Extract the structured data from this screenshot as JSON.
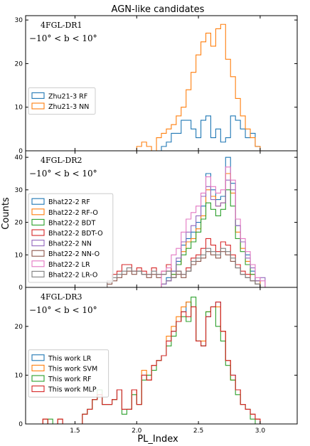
{
  "chart_data": {
    "type": "histogram",
    "title": "AGN-like candidates",
    "xlabel": "PL_Index",
    "ylabel": "Counts",
    "xlim": [
      1.1,
      3.3
    ],
    "x_ticks": [
      "1.5",
      "2.0",
      "2.5",
      "3.0"
    ],
    "x_tick_values": [
      1.5,
      2.0,
      2.5,
      3.0
    ],
    "grid": false,
    "bins": {
      "start": 1.2,
      "width": 0.04,
      "count": 50
    },
    "panels": [
      {
        "catalog": "4FGL-DR1",
        "region": "−10° < b < 10°",
        "ylim": [
          0,
          31
        ],
        "y_ticks": [
          "0",
          "10",
          "20",
          "30"
        ],
        "y_tick_values": [
          0,
          10,
          20,
          30
        ],
        "legend_placement": "center-left",
        "series": [
          {
            "name": "Zhu21-3 RF",
            "color": "#1f77b4",
            "counts": [
              0,
              0,
              0,
              0,
              0,
              0,
              0,
              0,
              0,
              0,
              0,
              0,
              0,
              0,
              0,
              0,
              0,
              0,
              0,
              0,
              0,
              0,
              0,
              0,
              0,
              1,
              2,
              4,
              4,
              7,
              7,
              5,
              3,
              7,
              8,
              3,
              5,
              2,
              3,
              8,
              7,
              5,
              3,
              4,
              1,
              0,
              0,
              0,
              0,
              0
            ]
          },
          {
            "name": "Zhu21-3 NN",
            "color": "#ff7f0e",
            "counts": [
              0,
              0,
              0,
              0,
              0,
              0,
              0,
              0,
              0,
              0,
              0,
              0,
              0,
              0,
              0,
              0,
              0,
              0,
              0,
              0,
              1,
              2,
              1,
              0,
              3,
              4,
              5,
              6,
              8,
              10,
              14,
              18,
              22,
              25,
              27,
              24,
              28,
              29,
              21,
              17,
              12,
              8,
              5,
              3,
              1,
              0,
              0,
              0,
              0,
              0
            ]
          }
        ]
      },
      {
        "catalog": "4FGL-DR2",
        "region": "−10° < b < 10°",
        "ylim": [
          0,
          42
        ],
        "y_ticks": [
          "0",
          "10",
          "20",
          "30",
          "40"
        ],
        "y_tick_values": [
          0,
          10,
          20,
          30,
          40
        ],
        "legend_placement": "lower-left",
        "series": [
          {
            "name": "Bhat22-2 RF",
            "color": "#1f77b4",
            "counts": [
              0,
              0,
              0,
              0,
              0,
              0,
              0,
              0,
              0,
              0,
              0,
              0,
              0,
              0,
              0,
              0,
              0,
              0,
              0,
              0,
              0,
              0,
              0,
              0,
              0,
              1,
              3,
              5,
              8,
              13,
              15,
              17,
              20,
              25,
              35,
              30,
              27,
              28,
              40,
              32,
              19,
              14,
              10,
              5,
              2,
              0,
              0,
              0,
              0,
              0
            ]
          },
          {
            "name": "Bhat22-2 RF-O",
            "color": "#ff7f0e",
            "counts": [
              0,
              0,
              0,
              0,
              0,
              0,
              0,
              0,
              0,
              0,
              0,
              0,
              0,
              0,
              0,
              0,
              0,
              0,
              0,
              0,
              0,
              0,
              0,
              0,
              0,
              1,
              2,
              4,
              7,
              11,
              14,
              15,
              18,
              22,
              30,
              28,
              25,
              26,
              35,
              29,
              17,
              12,
              8,
              4,
              2,
              0,
              0,
              0,
              0,
              0
            ]
          },
          {
            "name": "Bhat22-2 BDT",
            "color": "#2ca02c",
            "counts": [
              0,
              0,
              0,
              0,
              0,
              0,
              0,
              0,
              0,
              0,
              0,
              0,
              0,
              0,
              0,
              0,
              0,
              0,
              0,
              0,
              0,
              0,
              0,
              0,
              0,
              1,
              2,
              4,
              7,
              10,
              12,
              14,
              17,
              21,
              26,
              24,
              22,
              24,
              30,
              25,
              15,
              11,
              7,
              4,
              1,
              0,
              0,
              0,
              0,
              0
            ]
          },
          {
            "name": "Bhat22-2 BDT-O",
            "color": "#d62728",
            "counts": [
              0,
              0,
              0,
              0,
              0,
              0,
              0,
              0,
              0,
              0,
              0,
              0,
              0,
              0,
              2,
              4,
              5,
              7,
              7,
              5,
              6,
              5,
              4,
              6,
              4,
              5,
              7,
              3,
              5,
              4,
              6,
              9,
              10,
              12,
              15,
              13,
              11,
              14,
              13,
              10,
              7,
              5,
              4,
              2,
              1,
              0,
              0,
              0,
              0,
              0
            ]
          },
          {
            "name": "Bhat22-2 NN",
            "color": "#9467bd",
            "counts": [
              0,
              0,
              0,
              0,
              0,
              0,
              0,
              0,
              0,
              0,
              0,
              0,
              0,
              0,
              0,
              0,
              0,
              0,
              0,
              0,
              0,
              0,
              0,
              0,
              0,
              1,
              2,
              5,
              9,
              14,
              17,
              19,
              22,
              28,
              31,
              27,
              25,
              26,
              33,
              30,
              19,
              14,
              9,
              6,
              2,
              3,
              0,
              0,
              0,
              0
            ]
          },
          {
            "name": "Bhat22-2 NN-O",
            "color": "#8c564b",
            "counts": [
              0,
              0,
              0,
              0,
              0,
              0,
              0,
              0,
              0,
              0,
              0,
              0,
              0,
              0,
              1,
              2,
              3,
              4,
              5,
              4,
              5,
              4,
              3,
              4,
              3,
              4,
              5,
              3,
              4,
              3,
              5,
              7,
              8,
              9,
              11,
              10,
              9,
              11,
              10,
              8,
              6,
              4,
              3,
              2,
              1,
              0,
              0,
              0,
              0,
              0
            ]
          },
          {
            "name": "Bhat22-2 LR",
            "color": "#e377c2",
            "counts": [
              0,
              0,
              0,
              0,
              0,
              0,
              0,
              0,
              0,
              0,
              0,
              0,
              0,
              0,
              0,
              0,
              0,
              0,
              0,
              0,
              0,
              0,
              0,
              0,
              0,
              5,
              6,
              10,
              12,
              17,
              21,
              23,
              25,
              29,
              34,
              31,
              29,
              30,
              37,
              33,
              21,
              15,
              11,
              7,
              3,
              2,
              0,
              0,
              0,
              0
            ]
          },
          {
            "name": "Bhat22-2 LR-O",
            "color": "#7f7f7f",
            "counts": [
              0,
              0,
              0,
              0,
              0,
              0,
              0,
              0,
              0,
              0,
              0,
              0,
              0,
              0,
              2,
              3,
              4,
              5,
              6,
              5,
              5,
              4,
              4,
              5,
              4,
              4,
              5,
              3,
              5,
              4,
              5,
              8,
              9,
              10,
              12,
              11,
              10,
              12,
              11,
              9,
              6,
              4,
              3,
              2,
              1,
              0,
              0,
              0,
              0,
              0
            ]
          }
        ]
      },
      {
        "catalog": "4FGL-DR3",
        "region": "−10° < b < 10°",
        "ylim": [
          0,
          28
        ],
        "y_ticks": [
          "0",
          "10",
          "20"
        ],
        "y_tick_values": [
          0,
          10,
          20
        ],
        "legend_placement": "center-left",
        "series": [
          {
            "name": "This work LR",
            "color": "#1f77b4",
            "counts": [
              0,
              1,
              0,
              0,
              1,
              0,
              0,
              0,
              0,
              2,
              3,
              5,
              6,
              4,
              4,
              5,
              7,
              3,
              3,
              7,
              4,
              10,
              9,
              12,
              13,
              14,
              17,
              19,
              21,
              23,
              25,
              24,
              17,
              16,
              22,
              24,
              25,
              19,
              13,
              10,
              7,
              4,
              3,
              2,
              1,
              0,
              0,
              0,
              0,
              0
            ]
          },
          {
            "name": "This work SVM",
            "color": "#ff7f0e",
            "counts": [
              0,
              1,
              0,
              0,
              1,
              0,
              0,
              0,
              0,
              2,
              3,
              5,
              6,
              4,
              4,
              5,
              7,
              3,
              3,
              7,
              4,
              11,
              9,
              12,
              13,
              14,
              18,
              20,
              22,
              24,
              25,
              24,
              17,
              17,
              23,
              24,
              24,
              19,
              13,
              9,
              7,
              4,
              3,
              2,
              1,
              0,
              0,
              0,
              0,
              0
            ]
          },
          {
            "name": "This work RF",
            "color": "#2ca02c",
            "counts": [
              0,
              0,
              1,
              0,
              0,
              0,
              0,
              0,
              0,
              2,
              3,
              5,
              7,
              4,
              4,
              5,
              7,
              2,
              3,
              6,
              4,
              9,
              10,
              11,
              13,
              14,
              16,
              18,
              21,
              22,
              21,
              26,
              17,
              16,
              23,
              24,
              20,
              17,
              12,
              9,
              6,
              4,
              3,
              1,
              0,
              0,
              0,
              0,
              0,
              0
            ]
          },
          {
            "name": "This work MLP",
            "color": "#d62728",
            "counts": [
              0,
              1,
              0,
              0,
              1,
              0,
              0,
              0,
              0,
              2,
              3,
              5,
              6,
              4,
              4,
              5,
              7,
              3,
              3,
              7,
              4,
              10,
              9,
              12,
              13,
              14,
              17,
              19,
              21,
              23,
              22,
              24,
              17,
              16,
              22,
              24,
              25,
              19,
              13,
              10,
              7,
              4,
              3,
              2,
              1,
              0,
              0,
              0,
              0,
              0
            ]
          }
        ]
      }
    ]
  }
}
